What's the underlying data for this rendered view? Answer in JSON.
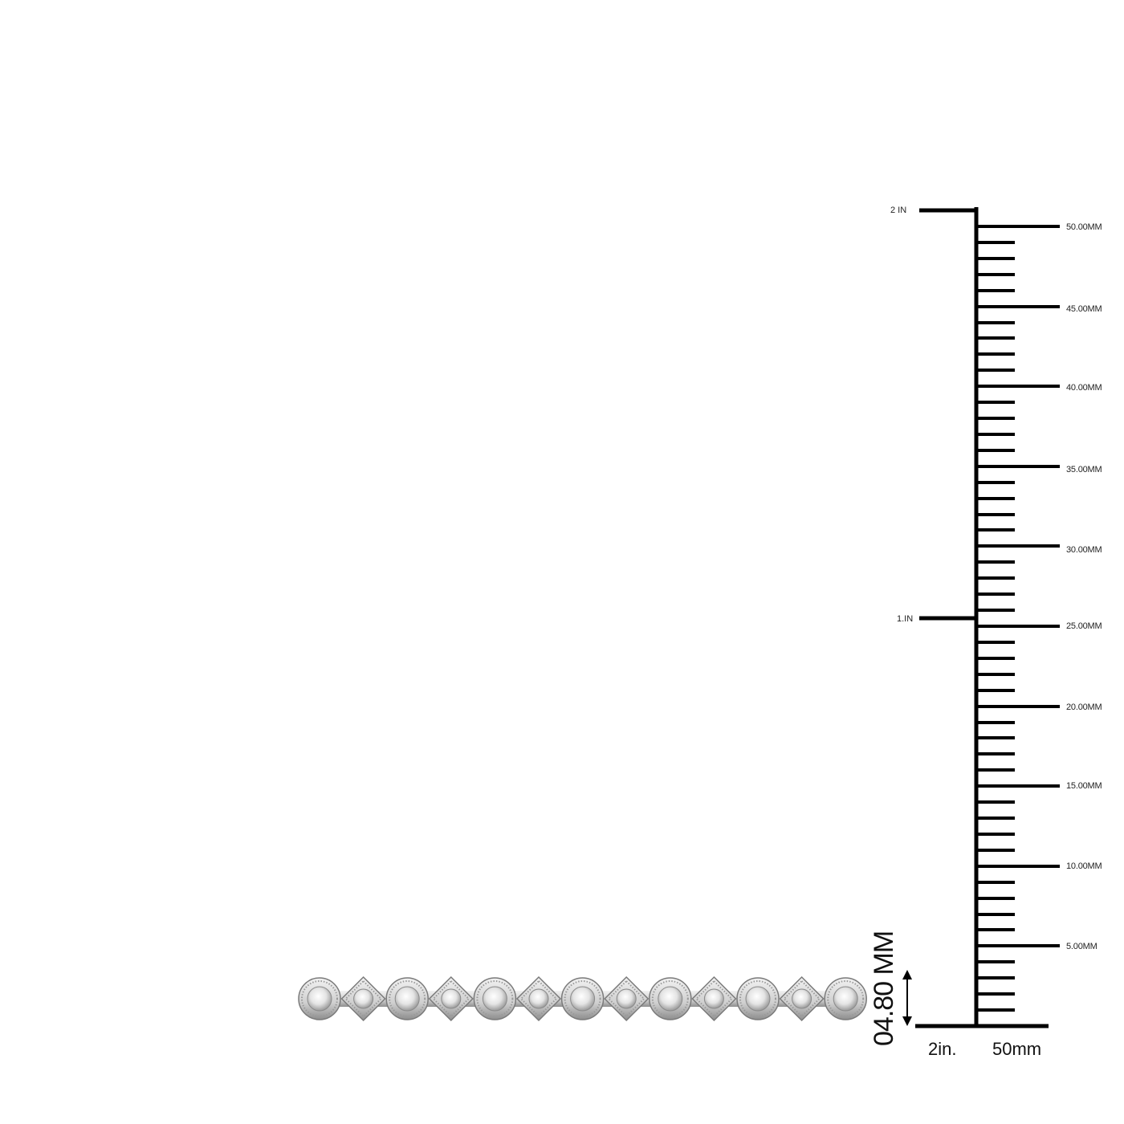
{
  "ruler": {
    "inch_labels": [
      "2 IN",
      "1.IN"
    ],
    "mm_labels": [
      "50.00MM",
      "45.00MM",
      "40.00MM",
      "35.00MM",
      "30.00MM",
      "25.00MM",
      "20.00MM",
      "15.00MM",
      "10.00MM",
      "5.00MM"
    ],
    "bottom_labels": {
      "inches": "2in.",
      "mm": "50mm"
    }
  },
  "product": {
    "height_label": "04.80 MM",
    "name": "diamond-bracelet-icon",
    "metal_color": "#d9d9d9",
    "link_pattern": [
      "round",
      "diamond",
      "round",
      "diamond",
      "round",
      "diamond",
      "round",
      "diamond",
      "round",
      "diamond",
      "round",
      "diamond",
      "round"
    ]
  },
  "colors": {
    "ruler": "#000000",
    "background": "#ffffff"
  }
}
